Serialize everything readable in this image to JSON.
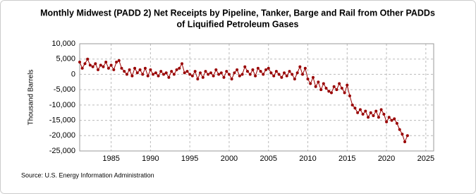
{
  "chart_data": {
    "type": "line",
    "title": [
      "Monthly Midwest (PADD 2) Net Receipts by Pipeline, Tanker, Barge and Rail from Other PADDs",
      "of Liquified Petroleum Gases"
    ],
    "y_label": "Thousand Barrels",
    "source": "Source: U.S. Energy Information Administration",
    "xlim": [
      1981,
      2026
    ],
    "xticks": [
      1985,
      1990,
      1995,
      2000,
      2005,
      2010,
      2015,
      2020,
      2025
    ],
    "ylim": [
      -25000,
      10000
    ],
    "yticks": [
      {
        "value": 10000,
        "label": "10,000"
      },
      {
        "value": 5000,
        "label": "5,000"
      },
      0,
      {
        "value": -5000,
        "label": "-5,000"
      },
      {
        "value": -10000,
        "label": "-10,000"
      },
      {
        "value": -15000,
        "label": "-15,000"
      },
      {
        "value": -20000,
        "label": "-20,000"
      },
      {
        "value": -25000,
        "label": "-25,000"
      }
    ],
    "grid": true,
    "x": [
      1981,
      1981.33,
      1981.67,
      1982,
      1982.33,
      1982.67,
      1983,
      1983.33,
      1983.67,
      1984,
      1984.33,
      1984.67,
      1985,
      1985.33,
      1985.67,
      1986,
      1986.33,
      1986.67,
      1987,
      1987.33,
      1987.67,
      1988,
      1988.33,
      1988.67,
      1989,
      1989.33,
      1989.67,
      1990,
      1990.33,
      1990.67,
      1991,
      1991.33,
      1991.67,
      1992,
      1992.33,
      1992.67,
      1993,
      1993.33,
      1993.67,
      1994,
      1994.33,
      1994.67,
      1995,
      1995.33,
      1995.67,
      1996,
      1996.33,
      1996.67,
      1997,
      1997.33,
      1997.67,
      1998,
      1998.33,
      1998.67,
      1999,
      1999.33,
      1999.67,
      2000,
      2000.33,
      2000.67,
      2001,
      2001.33,
      2001.67,
      2002,
      2002.33,
      2002.67,
      2003,
      2003.33,
      2003.67,
      2004,
      2004.33,
      2004.67,
      2005,
      2005.33,
      2005.67,
      2006,
      2006.33,
      2006.67,
      2007,
      2007.33,
      2007.67,
      2008,
      2008.33,
      2008.67,
      2009,
      2009.33,
      2009.67,
      2010,
      2010.33,
      2010.67,
      2011,
      2011.33,
      2011.67,
      2012,
      2012.33,
      2012.67,
      2013,
      2013.33,
      2013.67,
      2014,
      2014.33,
      2014.67,
      2015,
      2015.33,
      2015.67,
      2016,
      2016.33,
      2016.67,
      2017,
      2017.33,
      2017.67,
      2018,
      2018.33,
      2018.67,
      2019,
      2019.33,
      2019.67,
      2020,
      2020.33,
      2020.67,
      2021,
      2021.33,
      2021.67,
      2022,
      2022.33,
      2022.67
    ],
    "series": [
      {
        "color": "#990000",
        "values": [
          4000,
          2000,
          3500,
          5000,
          3000,
          2500,
          3500,
          1500,
          3000,
          2500,
          4000,
          2000,
          3000,
          1500,
          4000,
          4500,
          2000,
          1000,
          0,
          1500,
          -500,
          2000,
          500,
          1500,
          0,
          2000,
          -500,
          1500,
          0,
          500,
          -500,
          1000,
          0,
          500,
          -1000,
          1000,
          0,
          1500,
          2000,
          3500,
          500,
          1000,
          0,
          -500,
          1000,
          -1500,
          500,
          -1000,
          1000,
          0,
          500,
          -500,
          1500,
          0,
          500,
          -1000,
          1000,
          0,
          -1500,
          500,
          1500,
          -500,
          0,
          2500,
          1000,
          0,
          1500,
          -500,
          2000,
          1000,
          0,
          1500,
          2000,
          500,
          -500,
          1000,
          0,
          -1000,
          500,
          -500,
          1000,
          0,
          -1500,
          500,
          2500,
          0,
          2000,
          -1500,
          -3000,
          -1000,
          -4000,
          -2500,
          -5000,
          -3000,
          -4500,
          -5500,
          -6000,
          -4000,
          -5000,
          -3000,
          -4500,
          -6000,
          -3500,
          -7000,
          -10000,
          -11000,
          -12500,
          -11500,
          -13000,
          -12000,
          -14000,
          -12500,
          -13500,
          -12000,
          -14000,
          -11500,
          -13000,
          -15500,
          -14000,
          -15000,
          -14500,
          -16000,
          -18000,
          -19500,
          -22000,
          -20000
        ]
      }
    ]
  }
}
